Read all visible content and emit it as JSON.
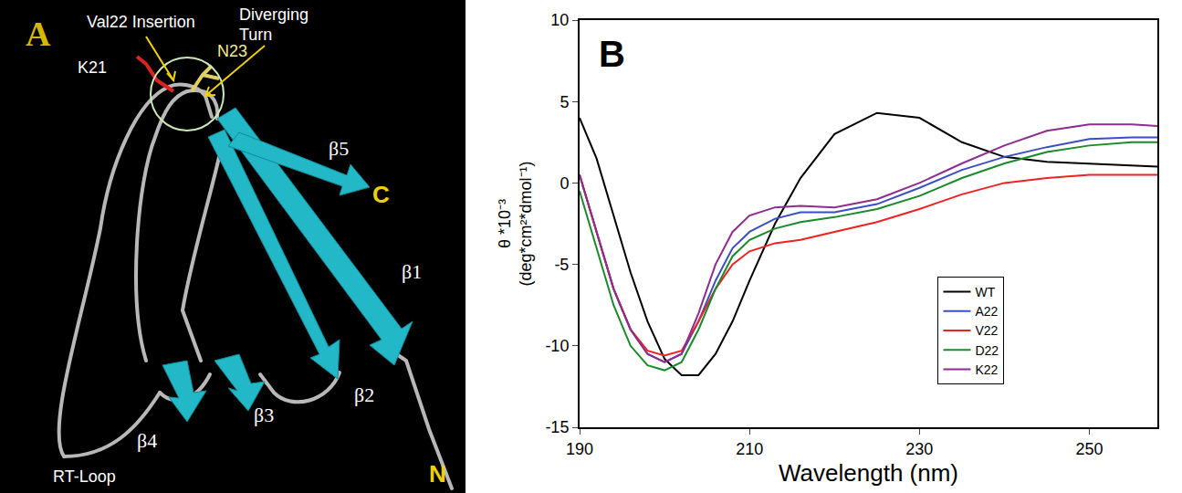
{
  "panel_a": {
    "letter": "A",
    "labels": {
      "val22": "Val22 Insertion",
      "turn": "Diverging Turn",
      "k21": "K21",
      "n23": "N23",
      "b5": "β5",
      "b1": "β1",
      "b2": "β2",
      "b3": "β3",
      "b4": "β4",
      "rt": "RT-Loop",
      "c": "C",
      "n": "N"
    }
  },
  "chart_data": {
    "type": "line",
    "panel": "B",
    "xlabel": "Wavelength (nm)",
    "ylabel": [
      "θ *10⁻³",
      "(deg*cm²*dmol⁻¹)"
    ],
    "x": [
      190,
      192,
      194,
      196,
      198,
      200,
      202,
      204,
      206,
      208,
      210,
      213,
      216,
      220,
      225,
      230,
      235,
      240,
      245,
      250,
      255,
      258
    ],
    "series": [
      {
        "name": "WT",
        "color": "#000000",
        "values": [
          4,
          1.5,
          -2,
          -5.5,
          -8.5,
          -10.8,
          -11.8,
          -11.8,
          -10.5,
          -8.5,
          -6,
          -2.5,
          0.3,
          3,
          4.3,
          4,
          2.5,
          1.6,
          1.3,
          1.2,
          1.1,
          1
        ]
      },
      {
        "name": "A22",
        "color": "#3b4fc4",
        "values": [
          0.5,
          -3,
          -6.5,
          -9,
          -10.5,
          -11,
          -10.5,
          -8.5,
          -6,
          -4,
          -3,
          -2.2,
          -1.8,
          -1.8,
          -1.3,
          -0.3,
          0.8,
          1.6,
          2.2,
          2.7,
          2.8,
          2.8
        ]
      },
      {
        "name": "V22",
        "color": "#ee2222",
        "values": [
          0.5,
          -3,
          -6.5,
          -9,
          -10.3,
          -10.6,
          -10.3,
          -8.5,
          -6.5,
          -5,
          -4.2,
          -3.7,
          -3.5,
          -3,
          -2.4,
          -1.6,
          -0.7,
          0,
          0.3,
          0.5,
          0.5,
          0.5
        ]
      },
      {
        "name": "D22",
        "color": "#1a8a2a",
        "values": [
          -0.5,
          -4,
          -7.5,
          -10,
          -11.2,
          -11.5,
          -11,
          -9,
          -6.5,
          -4.5,
          -3.5,
          -2.8,
          -2.4,
          -2.1,
          -1.6,
          -0.8,
          0.3,
          1.2,
          1.9,
          2.3,
          2.5,
          2.5
        ]
      },
      {
        "name": "K22",
        "color": "#8e2d8e",
        "values": [
          0.5,
          -3,
          -6.5,
          -9,
          -10.5,
          -11,
          -10.5,
          -8,
          -5,
          -3,
          -2,
          -1.5,
          -1.4,
          -1.5,
          -1,
          0,
          1.2,
          2.3,
          3.2,
          3.6,
          3.6,
          3.5
        ]
      }
    ],
    "xlim": [
      190,
      258
    ],
    "xticks": [
      190,
      210,
      230,
      250
    ],
    "ylim": [
      -15,
      10
    ],
    "yticks": [
      -15,
      -10,
      -5,
      0,
      5,
      10
    ],
    "grid": false,
    "legend": "lower right"
  }
}
